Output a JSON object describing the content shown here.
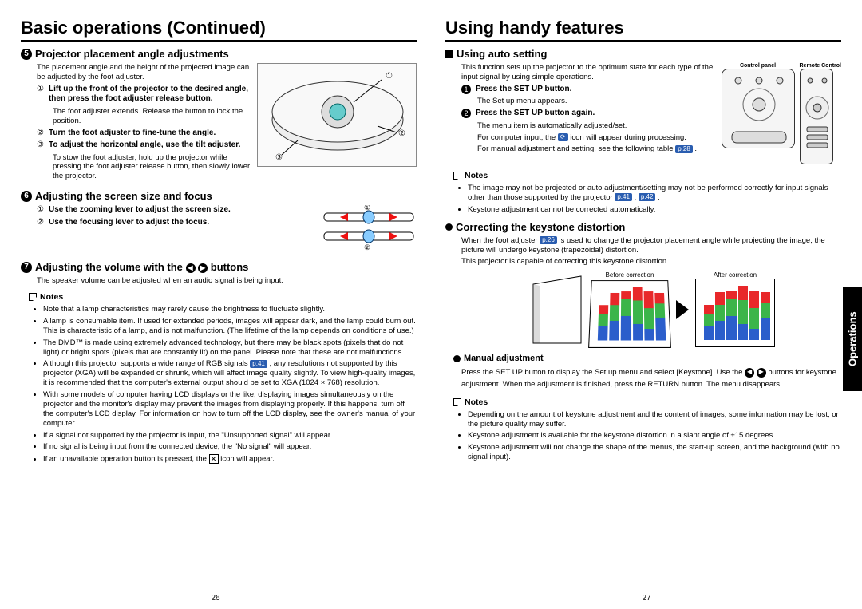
{
  "left": {
    "title": "Basic operations (Continued)",
    "s5": {
      "num": "5",
      "heading": "Projector placement angle adjustments",
      "intro": "The placement angle and the height of the projected image can be adjusted by the foot adjuster.",
      "steps": [
        {
          "n": "①",
          "bold": "Lift up the front of the projector to the desired angle, then press the foot adjuster release button.",
          "sub": "The foot adjuster extends. Release the button to lock the position."
        },
        {
          "n": "②",
          "bold": "Turn the foot adjuster to fine-tune the angle."
        },
        {
          "n": "③",
          "bold": "To adjust the horizontal angle, use the tilt adjuster."
        }
      ],
      "extra": "To stow the foot adjuster, hold up the projector while pressing the foot adjuster release button, then slowly lower the projector."
    },
    "s6": {
      "num": "6",
      "heading": "Adjusting the screen size and focus",
      "steps": [
        {
          "n": "①",
          "bold": "Use the zooming lever to adjust the screen size."
        },
        {
          "n": "②",
          "bold": "Use the focusing lever to adjust the focus."
        }
      ]
    },
    "s7": {
      "num": "7",
      "heading_a": "Adjusting the volume with the ",
      "heading_b": " buttons",
      "intro": "The speaker volume can be adjusted when an audio signal is being input."
    },
    "notesLabel": "Notes",
    "notes": [
      "Note that a lamp characteristics may rarely cause the brightness to fluctuate slightly.",
      "A lamp is consumable item. If used for extended periods, images will appear dark, and the lamp could burn out. This is characteristic of a lamp, and is not malfunction. (The lifetime of the lamp depends on conditions of use.)",
      "The DMD™ is made using extremely advanced technology, but there may be black spots (pixels that do not light) or bright spots (pixels that are constantly lit) on the panel.  Please note that these are not malfunctions.",
      "Although this projector supports a wide range of RGB signals |p41| , any resolutions not supported by this projector (XGA) will be expanded or shrunk, which will affect image quality slightly. To view high-quality images, it is recommended that the computer's external output should be set to XGA (1024 × 768) resolution.",
      "With some models of computer having LCD displays or the like, displaying images simultaneously on the projector and the monitor's display may prevent the images from displaying properly. If this happens, turn off the computer's LCD display. For information on how to turn off the LCD display, see the owner's manual of your computer.",
      "If a signal not supported by the projector is input, the \"Unsupported signal\" will appear.",
      "If no signal is being input from the connected device, the \"No signal\" will appear.",
      "If an unavailable operation button is pressed, the |X| icon will appear."
    ],
    "pageNum": "26"
  },
  "right": {
    "title": "Using handy features",
    "auto": {
      "heading": "Using auto setting",
      "intro": "This function sets up the projector to the optimum state for each type of the input signal by using simple operations.",
      "steps": [
        {
          "n": "1",
          "bold": "Press the SET UP button.",
          "sub": "The Set up menu appears."
        },
        {
          "n": "2",
          "bold": "Press the SET UP button again.",
          "sub": "The menu item is automatically adjusted/set."
        }
      ],
      "line3a": "For computer input, the ",
      "line3b": " icon will appear during processing.",
      "line4a": "For manual adjustment and setting, see the following table ",
      "line4ref": "p.28",
      "ctrlLabel": "Control panel",
      "remoteLabel": "Remote Control"
    },
    "autoNotes": [
      "The image may not be projected or auto adjustment/setting may not be performed correctly for input signals other than those supported by the projector |p41| , |p42| .",
      "Keystone adjustment cannot be corrected automatically."
    ],
    "keystone": {
      "heading": "Correcting the keystone distortion",
      "intro_a": "When the foot adjuster ",
      "intro_ref": "p.26",
      "intro_b": " is used to change the projector placement angle while projecting the image, the picture will undergo keystone (trapezoidal) distortion.",
      "intro2": "This projector is capable of correcting this keystone distortion.",
      "beforeLabel": "Before correction",
      "afterLabel": "After correction",
      "chart": {
        "colors": {
          "red": "#e8282a",
          "green": "#3bb54a",
          "blue": "#2b5ecb",
          "yellow": "#f9e24c"
        },
        "bars": [
          [
            {
              "c": "blue",
              "h": 18
            },
            {
              "c": "green",
              "h": 14
            },
            {
              "c": "red",
              "h": 12
            }
          ],
          [
            {
              "c": "blue",
              "h": 24
            },
            {
              "c": "green",
              "h": 20
            },
            {
              "c": "red",
              "h": 16
            }
          ],
          [
            {
              "c": "blue",
              "h": 30
            },
            {
              "c": "green",
              "h": 22
            },
            {
              "c": "red",
              "h": 10
            }
          ],
          [
            {
              "c": "blue",
              "h": 20
            },
            {
              "c": "green",
              "h": 30
            },
            {
              "c": "red",
              "h": 18
            }
          ],
          [
            {
              "c": "blue",
              "h": 14
            },
            {
              "c": "green",
              "h": 26
            },
            {
              "c": "red",
              "h": 22
            }
          ],
          [
            {
              "c": "blue",
              "h": 28
            },
            {
              "c": "green",
              "h": 18
            },
            {
              "c": "red",
              "h": 14
            }
          ]
        ]
      },
      "manualHeading": "Manual adjustment",
      "manual_a": "Press the SET UP button to display the Set up menu and select [Keystone]. Use the ",
      "manual_b": " buttons for keystone adjustment. When the adjustment is finished, press the RETURN button. The menu disappears."
    },
    "keystoneNotes": [
      "Depending on the amount of keystone adjustment and the content of images, some information may be lost, or the picture quality may suffer.",
      "Keystone adjustment is available for the keystone distortion in a slant angle of ±15 degrees.",
      "Keystone adjustment will not change the shape of the menus, the start-up screen, and the background (with no signal input)."
    ],
    "sideTab": "Operations",
    "pageNum": "27",
    "notesLabel": "Notes"
  }
}
